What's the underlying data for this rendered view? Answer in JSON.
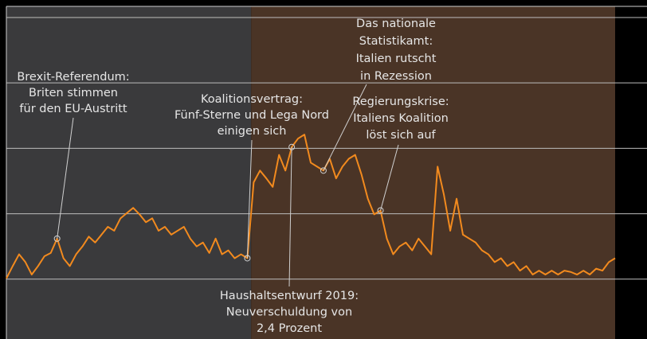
{
  "chart_data": {
    "type": "line",
    "values": [
      101,
      120,
      138,
      126,
      107,
      120,
      135,
      140,
      162,
      132,
      120,
      138,
      150,
      165,
      156,
      168,
      180,
      174,
      193,
      201,
      209,
      199,
      187,
      193,
      174,
      180,
      168,
      174,
      180,
      162,
      150,
      156,
      140,
      162,
      138,
      144,
      132,
      138,
      132,
      248,
      266,
      254,
      241,
      290,
      266,
      302,
      315,
      321,
      278,
      272,
      266,
      284,
      254,
      272,
      284,
      290,
      260,
      223,
      199,
      205,
      162,
      138,
      150,
      156,
      144,
      162,
      150,
      138,
      272,
      229,
      174,
      223,
      168,
      162,
      156,
      144,
      138,
      126,
      132,
      120,
      126,
      113,
      120,
      107,
      113,
      107,
      113,
      107,
      113,
      111,
      107,
      113,
      107,
      116,
      113,
      126,
      132
    ],
    "color": "#f28a1e",
    "ylim": [
      8.5,
      517
    ],
    "yticks": [
      100,
      200,
      300,
      400,
      500
    ],
    "grid": true,
    "shaded_regions": [
      {
        "from": 0,
        "to": 38.6,
        "color": "#3a3a3c"
      },
      {
        "from": 38.6,
        "to": 96,
        "color": "#4a3426"
      }
    ],
    "annotations": [
      {
        "lines": [
          "Brexit-Referendum:",
          "Briten stimmen",
          "für den EU-Austritt"
        ],
        "index": 8
      },
      {
        "lines": [
          "Koalitionsvertrag:",
          "Fünf-Sterne und Lega Nord",
          "einigen sich"
        ],
        "index": 38
      },
      {
        "lines": [
          "Haushaltsentwurf 2019:",
          "Neuverschuldung von",
          "2,4 Prozent"
        ],
        "index": 45
      },
      {
        "lines": [
          "Das nationale",
          "Statistikamt:",
          "Italien rutscht",
          "in Rezession"
        ],
        "index": 50
      },
      {
        "lines": [
          "Regierungskrise:",
          "Italiens Koalition",
          "löst sich auf"
        ],
        "index": 59
      }
    ]
  }
}
